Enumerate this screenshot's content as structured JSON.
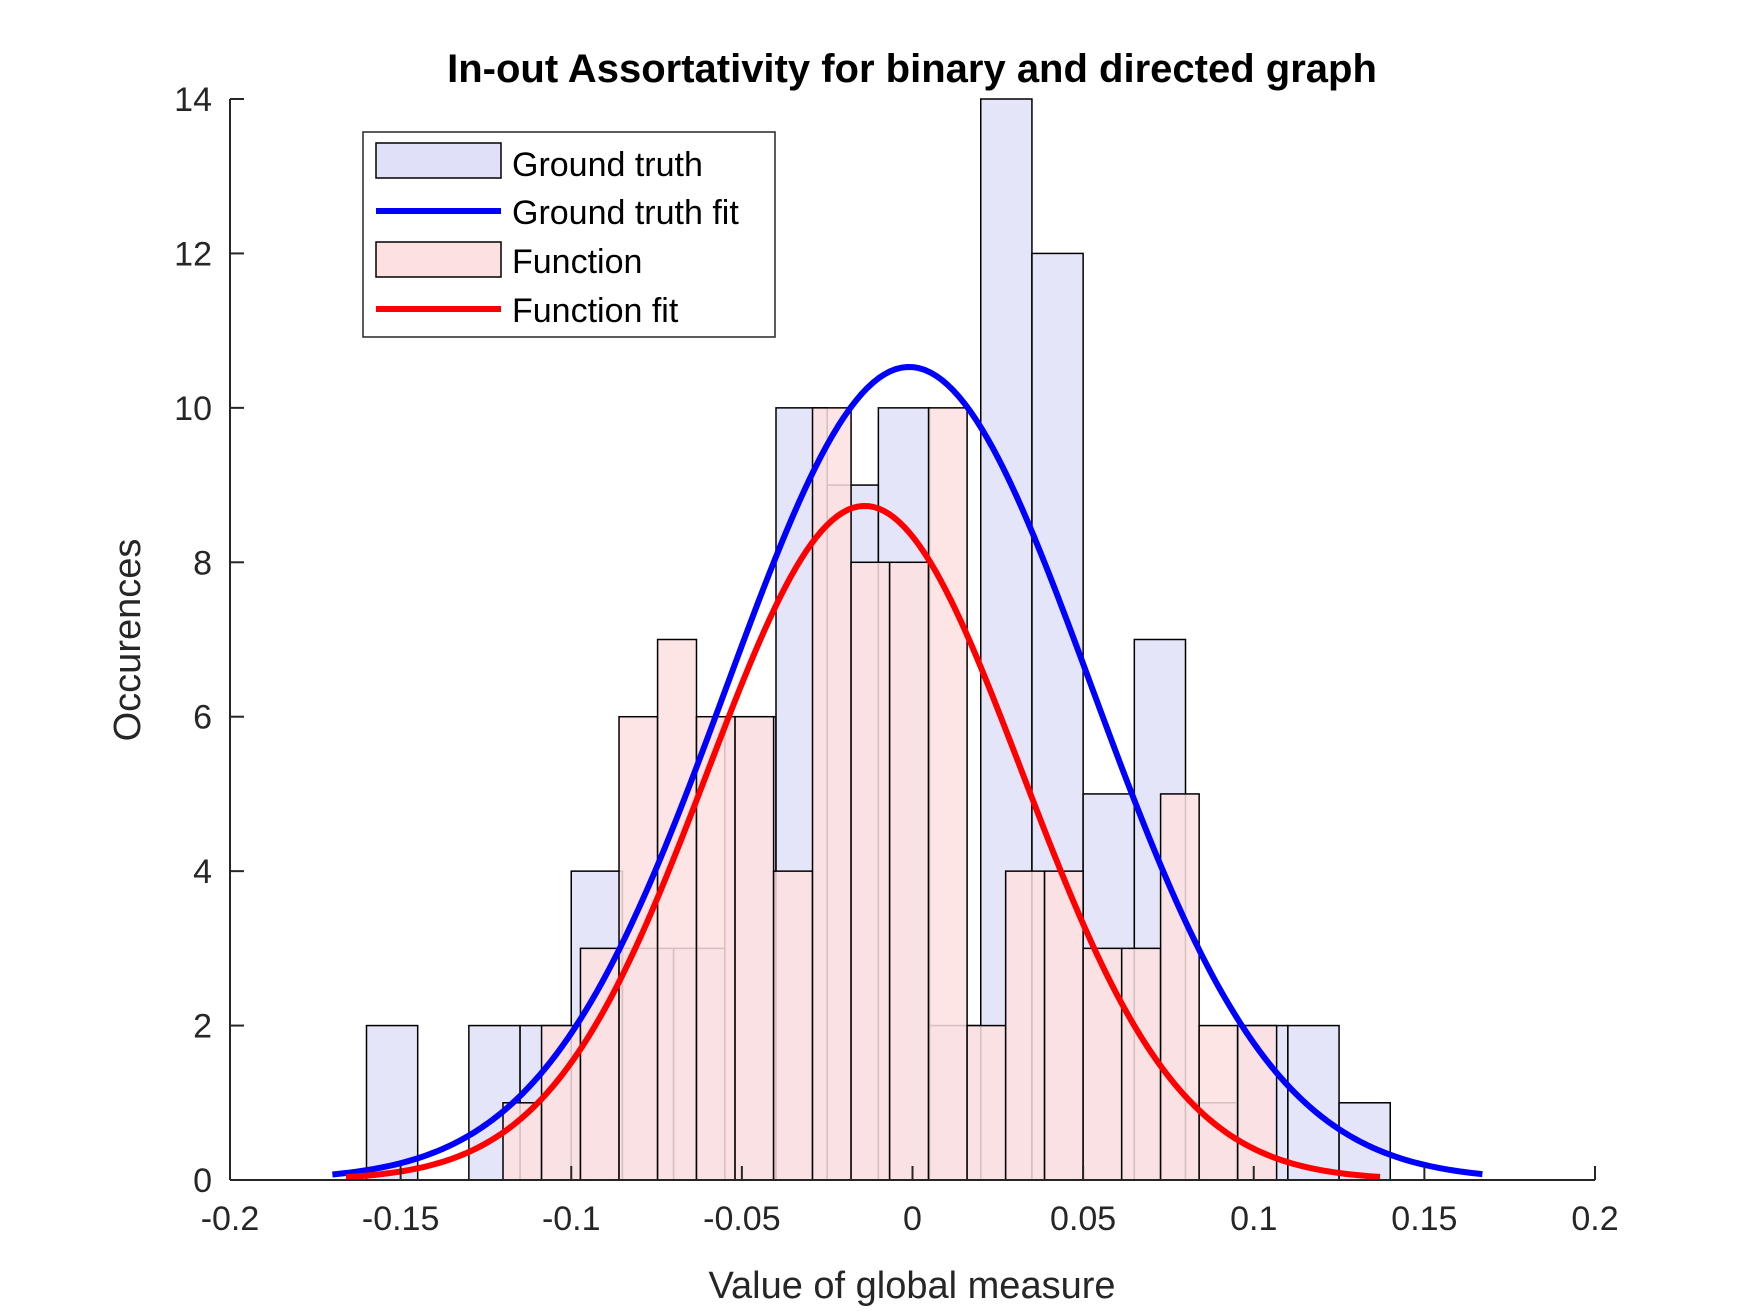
{
  "chart_data": {
    "type": "histogram",
    "title": "In-out Assortativity for binary and directed graph",
    "xlabel": "Value of global measure",
    "ylabel": "Occurences",
    "xlim": [
      -0.2,
      0.2
    ],
    "ylim": [
      0,
      14
    ],
    "xticks": [
      "-0.2",
      "-0.15",
      "-0.1",
      "-0.05",
      "0",
      "0.05",
      "0.1",
      "0.15",
      "0.2"
    ],
    "yticks": [
      "0",
      "2",
      "4",
      "6",
      "8",
      "10",
      "12",
      "14"
    ],
    "legend_position": "top-left",
    "grid": false,
    "series": [
      {
        "name": "Ground truth",
        "kind": "bars",
        "color": "#e0e0f8",
        "edges": [
          -0.16,
          -0.145,
          -0.13,
          -0.115,
          -0.1,
          -0.085,
          -0.07,
          -0.055,
          -0.04,
          -0.025,
          -0.01,
          0.005,
          0.02,
          0.035,
          0.05,
          0.065,
          0.08,
          0.095,
          0.11,
          0.125
        ],
        "counts": [
          2,
          0,
          2,
          2,
          4,
          3,
          3,
          6,
          10,
          9,
          10,
          2,
          14,
          12,
          5,
          7,
          1,
          2,
          2,
          1
        ]
      },
      {
        "name": "Ground truth fit",
        "kind": "line",
        "color": "#0000ff",
        "mean": -0.001,
        "sigma": 0.0535,
        "peak": 10.53,
        "xrange": [
          -0.17,
          0.167
        ]
      },
      {
        "name": "Function",
        "kind": "bars",
        "color": "#fde0e0",
        "edges": [
          -0.12,
          -0.1087,
          -0.0973,
          -0.086,
          -0.0747,
          -0.0633,
          -0.052,
          -0.0407,
          -0.0293,
          -0.018,
          -0.0067,
          0.0047,
          0.016,
          0.0273,
          0.0387,
          0.05,
          0.0613,
          0.0727,
          0.084,
          0.0953,
          0.1067
        ],
        "counts": [
          1,
          2,
          3,
          6,
          7,
          6,
          6,
          4,
          10,
          8,
          8,
          10,
          2,
          4,
          4,
          3,
          3,
          5,
          2,
          2
        ],
        "bin_width": 0.0113
      },
      {
        "name": "Function fit",
        "kind": "line",
        "color": "#ff0000",
        "mean": -0.014,
        "sigma": 0.046,
        "peak": 8.73,
        "xrange": [
          -0.166,
          0.137
        ]
      }
    ]
  }
}
